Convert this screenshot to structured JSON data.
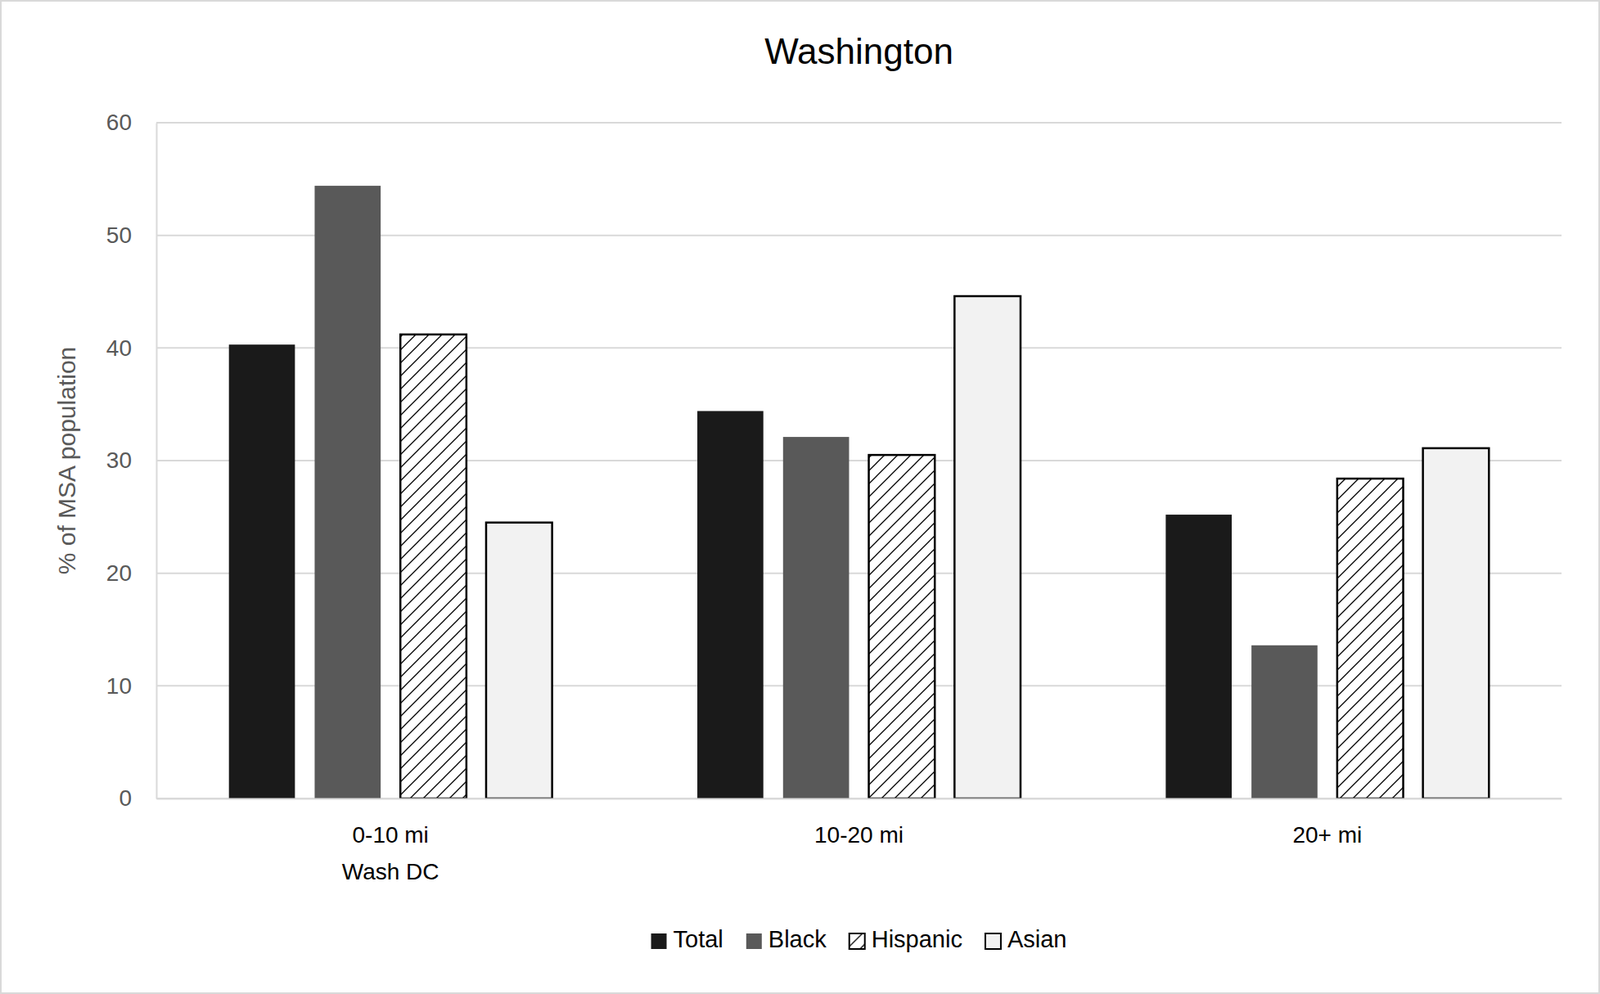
{
  "chart_data": {
    "type": "bar",
    "title": "Washington",
    "ylabel": "% of MSA population",
    "categories": [
      "0-10 mi\nWash DC",
      "10-20 mi",
      "20+ mi"
    ],
    "series": [
      {
        "name": "Total",
        "color": "#1a1a1a",
        "values": [
          40.3,
          34.4,
          25.2
        ]
      },
      {
        "name": "Black",
        "color": "#595959",
        "values": [
          54.4,
          32.1,
          13.6
        ]
      },
      {
        "name": "Hispanic",
        "color": "#ffffff",
        "marker": "hatch",
        "values": [
          41.2,
          30.5,
          28.4
        ]
      },
      {
        "name": "Asian",
        "color": "#f2f2f2",
        "values": [
          24.5,
          44.6,
          31.1
        ]
      }
    ],
    "ylim": [
      0,
      60
    ],
    "yticks": [
      0,
      10,
      20,
      30,
      40,
      50,
      60
    ],
    "grid": true,
    "legend": "bottom"
  }
}
